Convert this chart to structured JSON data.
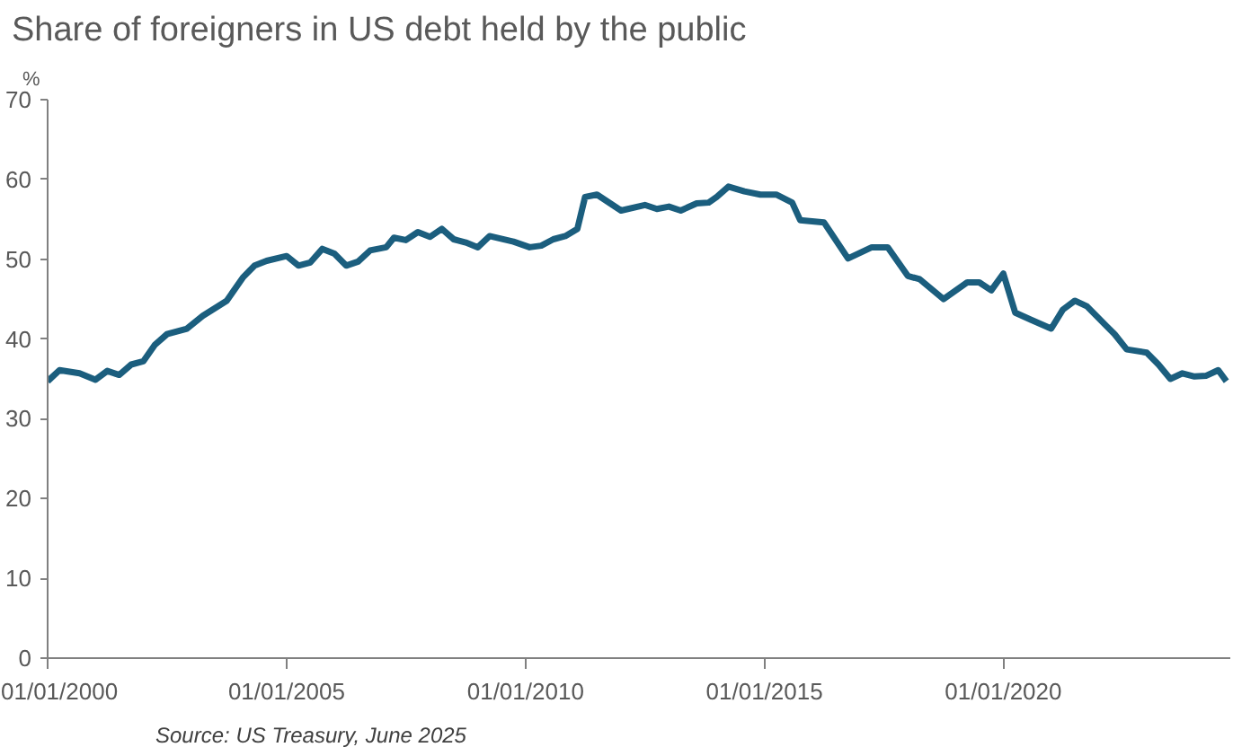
{
  "chart_data": {
    "type": "line",
    "title": "Share of foreigners in US debt held by the public",
    "ylabel": "%",
    "annotations": [
      "Source: US Treasury, June 2025"
    ],
    "x": [
      "2000-01",
      "2000-04",
      "2000-09",
      "2001-01",
      "2001-04",
      "2001-07",
      "2001-10",
      "2002-01",
      "2002-04",
      "2002-07",
      "2002-12",
      "2003-04",
      "2003-10",
      "2004-02",
      "2004-05",
      "2004-08",
      "2005-01",
      "2005-04",
      "2005-07",
      "2005-10",
      "2006-01",
      "2006-04",
      "2006-07",
      "2006-10",
      "2007-02",
      "2007-04",
      "2007-07",
      "2007-10",
      "2008-01",
      "2008-04",
      "2008-07",
      "2008-10",
      "2009-01",
      "2009-04",
      "2009-10",
      "2010-02",
      "2010-05",
      "2010-08",
      "2010-11",
      "2011-02",
      "2011-04",
      "2011-07",
      "2012-01",
      "2012-07",
      "2012-10",
      "2013-01",
      "2013-04",
      "2013-08",
      "2013-11",
      "2014-01",
      "2014-04",
      "2014-08",
      "2014-12",
      "2015-04",
      "2015-08",
      "2015-10",
      "2016-04",
      "2016-10",
      "2017-04",
      "2017-08",
      "2018-01",
      "2018-04",
      "2018-10",
      "2019-04",
      "2019-07",
      "2019-10",
      "2020-01",
      "2020-04",
      "2020-08",
      "2021-01",
      "2021-04",
      "2021-07",
      "2021-10",
      "2022-03",
      "2022-05",
      "2022-08",
      "2023-01",
      "2023-04",
      "2023-07",
      "2023-10",
      "2024-01",
      "2024-04",
      "2024-07",
      "2024-09"
    ],
    "series": [
      {
        "color": "#1b5e7e",
        "values": [
          34.7,
          36.1,
          35.7,
          34.9,
          36.0,
          35.5,
          36.8,
          37.2,
          39.3,
          40.6,
          41.3,
          42.9,
          44.8,
          47.7,
          49.2,
          49.8,
          50.4,
          49.2,
          49.6,
          51.3,
          50.7,
          49.2,
          49.7,
          51.1,
          51.5,
          52.7,
          52.4,
          53.4,
          52.8,
          53.8,
          52.5,
          52.1,
          51.5,
          52.9,
          52.2,
          51.5,
          51.7,
          52.5,
          52.9,
          53.8,
          57.8,
          58.1,
          56.1,
          56.8,
          56.3,
          56.6,
          56.1,
          57.0,
          57.1,
          57.8,
          59.1,
          58.5,
          58.1,
          58.1,
          57.1,
          54.9,
          54.6,
          50.1,
          51.5,
          51.5,
          47.9,
          47.5,
          45.0,
          47.1,
          47.1,
          46.1,
          48.2,
          43.3,
          42.4,
          41.3,
          43.7,
          44.8,
          44.1,
          41.6,
          40.6,
          38.7,
          38.3,
          36.8,
          35.0,
          35.7,
          35.3,
          35.4,
          36.1,
          34.7
        ]
      }
    ],
    "xlim": [
      "2000-01-01",
      "2024-10-01"
    ],
    "xticks": [
      {
        "value": "2000-01-01",
        "label": "01/01/2000"
      },
      {
        "value": "2005-01-01",
        "label": "01/01/2005"
      },
      {
        "value": "2010-01-01",
        "label": "01/01/2010"
      },
      {
        "value": "2015-01-01",
        "label": "01/01/2015"
      },
      {
        "value": "2020-01-01",
        "label": "01/01/2020"
      }
    ],
    "ylim": [
      0,
      70
    ],
    "yticks": [
      0,
      10,
      20,
      30,
      40,
      50,
      60,
      70
    ],
    "grid": false,
    "marker": "none",
    "line_style": "solid"
  }
}
